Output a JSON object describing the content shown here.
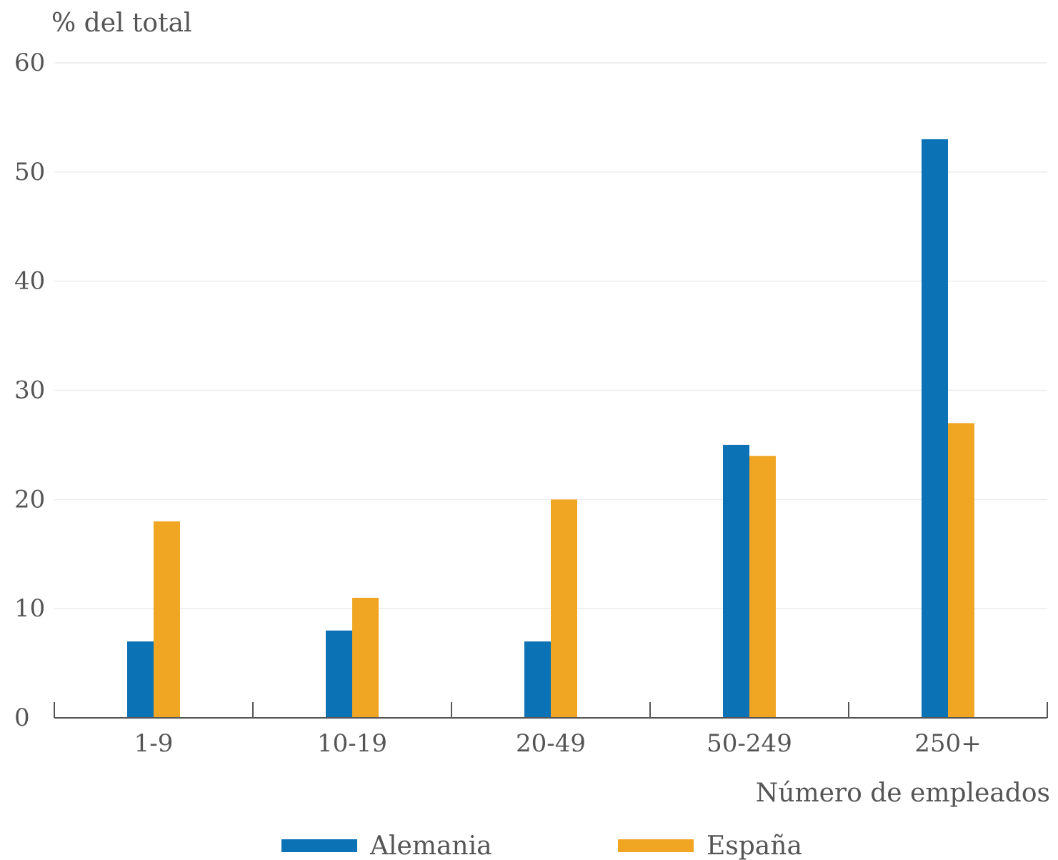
{
  "chart_data": {
    "type": "bar",
    "ylabel": "% del total",
    "xlabel": "Número de empleados",
    "ylim": [
      0,
      60
    ],
    "yticks": [
      0,
      10,
      20,
      30,
      40,
      50,
      60
    ],
    "grid": true,
    "legend_position": "bottom",
    "categories": [
      "1-9",
      "10-19",
      "20-49",
      "50-249",
      "250+"
    ],
    "series": [
      {
        "name": "Alemania",
        "color": "#0a72b5",
        "values": [
          7,
          8,
          7,
          25,
          53
        ]
      },
      {
        "name": "España",
        "color": "#f0a623",
        "values": [
          18,
          11,
          20,
          24,
          27
        ]
      }
    ]
  }
}
